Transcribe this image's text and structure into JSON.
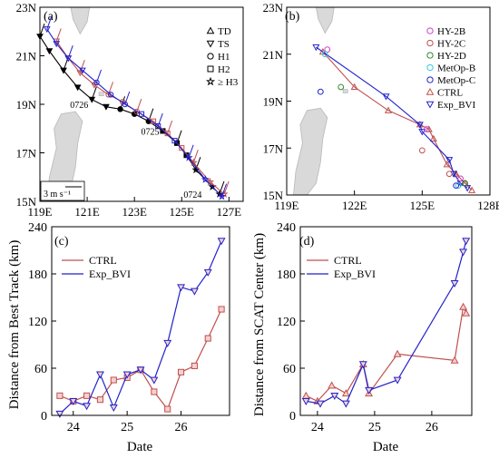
{
  "panels": {
    "a": {
      "label": "(a)",
      "xticks": [
        "119E",
        "121E",
        "123E",
        "125E",
        "127E"
      ],
      "yticks": [
        "15N",
        "17N",
        "19N",
        "21N",
        "23N"
      ],
      "legend": [
        {
          "symbol": "triangle-up",
          "label": "TD"
        },
        {
          "symbol": "triangle-down",
          "label": "TS"
        },
        {
          "symbol": "circle",
          "label": "H1"
        },
        {
          "symbol": "square",
          "label": "H2"
        },
        {
          "symbol": "star",
          "label": "≥ H3"
        }
      ],
      "date_labels": [
        "0726",
        "0725",
        "0724"
      ],
      "wind_scale_label": "3 m s⁻¹"
    },
    "b": {
      "label": "(b)",
      "xticks": [
        "119E",
        "122E",
        "125E",
        "128E"
      ],
      "yticks": [
        "15N",
        "17N",
        "19N",
        "21N",
        "23N"
      ],
      "legend": [
        {
          "symbol": "circle",
          "label": "HY-2B",
          "color": "#cc44cc"
        },
        {
          "symbol": "circle",
          "label": "HY-2C",
          "color": "#c0504d"
        },
        {
          "symbol": "circle",
          "label": "HY-2D",
          "color": "#2e8b2e"
        },
        {
          "symbol": "circle",
          "label": "MetOp-B",
          "color": "#33ccdd"
        },
        {
          "symbol": "circle",
          "label": "MetOp-C",
          "color": "#2222cc"
        },
        {
          "symbol": "triangle-up",
          "label": "CTRL",
          "color": "#c0504d"
        },
        {
          "symbol": "triangle-down",
          "label": "Exp_BVI",
          "color": "#2222cc"
        }
      ]
    }
  },
  "chart_data": [
    {
      "type": "line",
      "panel": "a",
      "title": "",
      "xlabel": "",
      "ylabel": "",
      "xlim": [
        119,
        127.6
      ],
      "ylim": [
        15,
        23
      ],
      "series": [
        {
          "name": "best_track",
          "color": "#000000",
          "x": [
            126.6,
            126.3,
            125.6,
            125.2,
            124.8,
            124.2,
            123.6,
            123.0,
            122.4,
            121.8,
            121.2,
            120.6,
            120.0,
            119.4,
            119.0
          ],
          "y": [
            15.3,
            15.6,
            16.3,
            16.9,
            17.4,
            17.9,
            18.3,
            18.6,
            18.8,
            18.9,
            19.2,
            19.7,
            20.4,
            21.2,
            21.8
          ]
        },
        {
          "name": "CTRL",
          "color": "#c0504d",
          "x": [
            126.8,
            126.2,
            125.5,
            125.0,
            124.4,
            123.8,
            123.1,
            122.5,
            121.9,
            121.3,
            120.7,
            120.2,
            119.7
          ],
          "y": [
            15.3,
            15.8,
            16.6,
            17.2,
            17.8,
            18.3,
            18.7,
            19.1,
            19.4,
            19.8,
            20.3,
            20.9,
            21.6
          ]
        },
        {
          "name": "Exp_BVI",
          "color": "#2222cc",
          "x": [
            126.7,
            126.0,
            125.3,
            124.7,
            124.0,
            123.3,
            122.6,
            122.0,
            121.4,
            120.8,
            120.2,
            119.7,
            119.3
          ],
          "y": [
            15.2,
            15.9,
            16.8,
            17.5,
            18.1,
            18.6,
            19.0,
            19.4,
            19.9,
            20.4,
            20.9,
            21.5,
            22.1
          ]
        }
      ]
    },
    {
      "type": "line",
      "panel": "b",
      "title": "",
      "xlabel": "",
      "ylabel": "",
      "xlim": [
        119,
        128
      ],
      "ylim": [
        15,
        23
      ],
      "series": [
        {
          "name": "CTRL",
          "color": "#c0504d",
          "x": [
            127.2,
            126.9,
            126.5,
            126.1,
            125.5,
            125.3,
            124.9,
            123.5,
            122.0,
            120.6
          ],
          "y": [
            15.2,
            15.5,
            15.9,
            16.3,
            17.4,
            17.8,
            18.0,
            18.6,
            19.6,
            21.1
          ]
        },
        {
          "name": "Exp_BVI",
          "color": "#2222cc",
          "x": [
            127.0,
            126.7,
            126.4,
            126.2,
            125.0,
            124.9,
            123.4,
            120.3
          ],
          "y": [
            15.3,
            15.5,
            15.9,
            16.5,
            17.7,
            18.0,
            19.2,
            21.3
          ]
        }
      ],
      "scat_centers": [
        {
          "name": "HY-2B",
          "color": "#cc44cc",
          "points": [
            [
              126.7,
              15.7
            ],
            [
              125.2,
              17.8
            ],
            [
              120.8,
              21.2
            ]
          ]
        },
        {
          "name": "HY-2C",
          "color": "#c0504d",
          "points": [
            [
              126.2,
              15.9
            ],
            [
              125.0,
              16.9
            ]
          ]
        },
        {
          "name": "HY-2D",
          "color": "#2e8b2e",
          "points": [
            [
              126.9,
              15.5
            ],
            [
              121.4,
              19.6
            ]
          ]
        },
        {
          "name": "MetOp-B",
          "color": "#33ccdd",
          "points": [
            [
              126.6,
              15.4
            ],
            [
              120.7,
              21.0
            ]
          ]
        },
        {
          "name": "MetOp-C",
          "color": "#2222cc",
          "points": [
            [
              126.5,
              15.4
            ],
            [
              120.5,
              19.4
            ]
          ]
        }
      ]
    },
    {
      "type": "line",
      "panel": "c",
      "label": "(c)",
      "title": "",
      "xlabel": "Date",
      "ylabel": "Distance from Best Track (km)",
      "xlim": [
        23.6,
        26.9
      ],
      "ylim": [
        0,
        240
      ],
      "xticks": [
        24,
        25,
        26
      ],
      "yticks": [
        0,
        60,
        120,
        180,
        240
      ],
      "legend": [
        {
          "name": "CTRL",
          "color": "#c0504d"
        },
        {
          "name": "Exp_BVI",
          "color": "#2222cc"
        }
      ],
      "series": [
        {
          "name": "CTRL",
          "color": "#c0504d",
          "marker": "square",
          "x": [
            23.75,
            24.0,
            24.25,
            24.5,
            24.75,
            25.0,
            25.25,
            25.5,
            25.75,
            26.0,
            26.25,
            26.5,
            26.75
          ],
          "y": [
            25,
            18,
            25,
            20,
            45,
            48,
            58,
            30,
            8,
            55,
            63,
            98,
            135
          ]
        },
        {
          "name": "Exp_BVI",
          "color": "#2222cc",
          "marker": "triangle-down",
          "x": [
            23.75,
            24.0,
            24.25,
            24.5,
            24.75,
            25.0,
            25.25,
            25.5,
            25.75,
            26.0,
            26.25,
            26.5,
            26.75
          ],
          "y": [
            2,
            18,
            12,
            52,
            10,
            52,
            58,
            45,
            92,
            163,
            158,
            182,
            222
          ]
        }
      ]
    },
    {
      "type": "line",
      "panel": "d",
      "label": "(d)",
      "title": "",
      "xlabel": "Date",
      "ylabel": "Distance from SCAT Center (km)",
      "xlim": [
        23.7,
        26.7
      ],
      "ylim": [
        0,
        240
      ],
      "xticks": [
        24,
        25,
        26
      ],
      "yticks": [
        0,
        60,
        120,
        180,
        240
      ],
      "legend": [
        {
          "name": "CTRL",
          "color": "#c0504d"
        },
        {
          "name": "Exp_BVI",
          "color": "#2222cc"
        }
      ],
      "series": [
        {
          "name": "CTRL",
          "color": "#c0504d",
          "marker": "triangle-up",
          "x": [
            23.8,
            24.0,
            24.25,
            24.5,
            24.8,
            24.9,
            25.4,
            26.4,
            26.55,
            26.6
          ],
          "y": [
            25,
            18,
            38,
            28,
            65,
            28,
            78,
            70,
            138,
            130
          ]
        },
        {
          "name": "Exp_BVI",
          "color": "#2222cc",
          "marker": "triangle-down",
          "x": [
            23.8,
            24.05,
            24.3,
            24.5,
            24.8,
            24.9,
            25.4,
            26.4,
            26.55,
            26.6
          ],
          "y": [
            18,
            15,
            25,
            15,
            65,
            32,
            45,
            168,
            208,
            222
          ]
        }
      ]
    }
  ]
}
